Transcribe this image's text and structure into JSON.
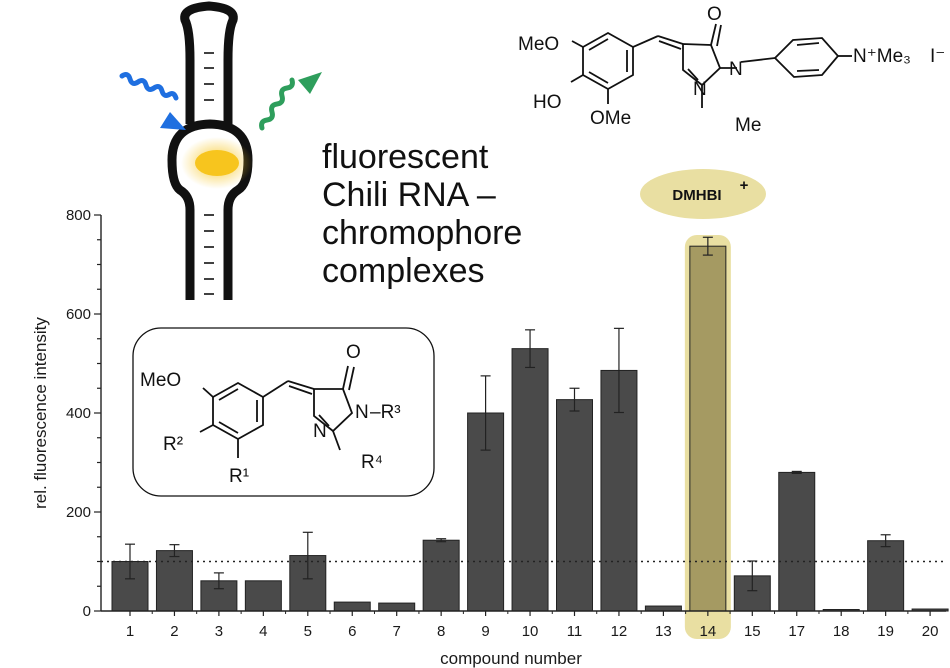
{
  "caption_lines": [
    "fluorescent",
    "Chili RNA –",
    "chromophore",
    "complexes"
  ],
  "badge": {
    "label": "DMHBI",
    "charge": "+"
  },
  "structure_top": {
    "meo": "MeO",
    "ho": "HO",
    "ome": "OMe",
    "o": "O",
    "n1": "N",
    "n2": "N",
    "me": "Me",
    "nme3": "N⁺Me₃",
    "iodide": "I⁻"
  },
  "structure_box": {
    "meo": "MeO",
    "r2": "R²",
    "r1": "R¹",
    "o": "O",
    "n1": "N",
    "n2": "N",
    "r3": "–R³",
    "r4": "R⁴"
  },
  "colors": {
    "bar": "#4a4a4a",
    "highlight": "#e9dfa2",
    "highlight_bar": "#a59a62",
    "blue_arrow": "#1f6fe0",
    "green_arrow": "#2e9e5c",
    "chromophore": "#f7c51e"
  },
  "chart_data": {
    "type": "bar",
    "categories": [
      "1",
      "2",
      "3",
      "4",
      "5",
      "6",
      "7",
      "8",
      "9",
      "10",
      "11",
      "12",
      "13",
      "14",
      "15",
      "17",
      "18",
      "19",
      "20"
    ],
    "values": [
      100,
      122,
      61,
      61,
      112,
      18,
      16,
      143,
      400,
      530,
      427,
      486,
      10,
      737,
      71,
      280,
      1,
      142,
      4
    ],
    "errors": [
      35,
      12,
      16,
      0,
      47,
      0,
      0,
      3,
      75,
      38,
      23,
      85,
      0,
      18,
      30,
      2,
      0,
      12,
      0
    ],
    "highlight_category": "14",
    "reference_line": 100,
    "xlabel": "compound number",
    "ylabel": "rel. fluorescence intensity",
    "ylim": [
      0,
      800
    ],
    "yticks": [
      0,
      200,
      400,
      600,
      800
    ]
  }
}
